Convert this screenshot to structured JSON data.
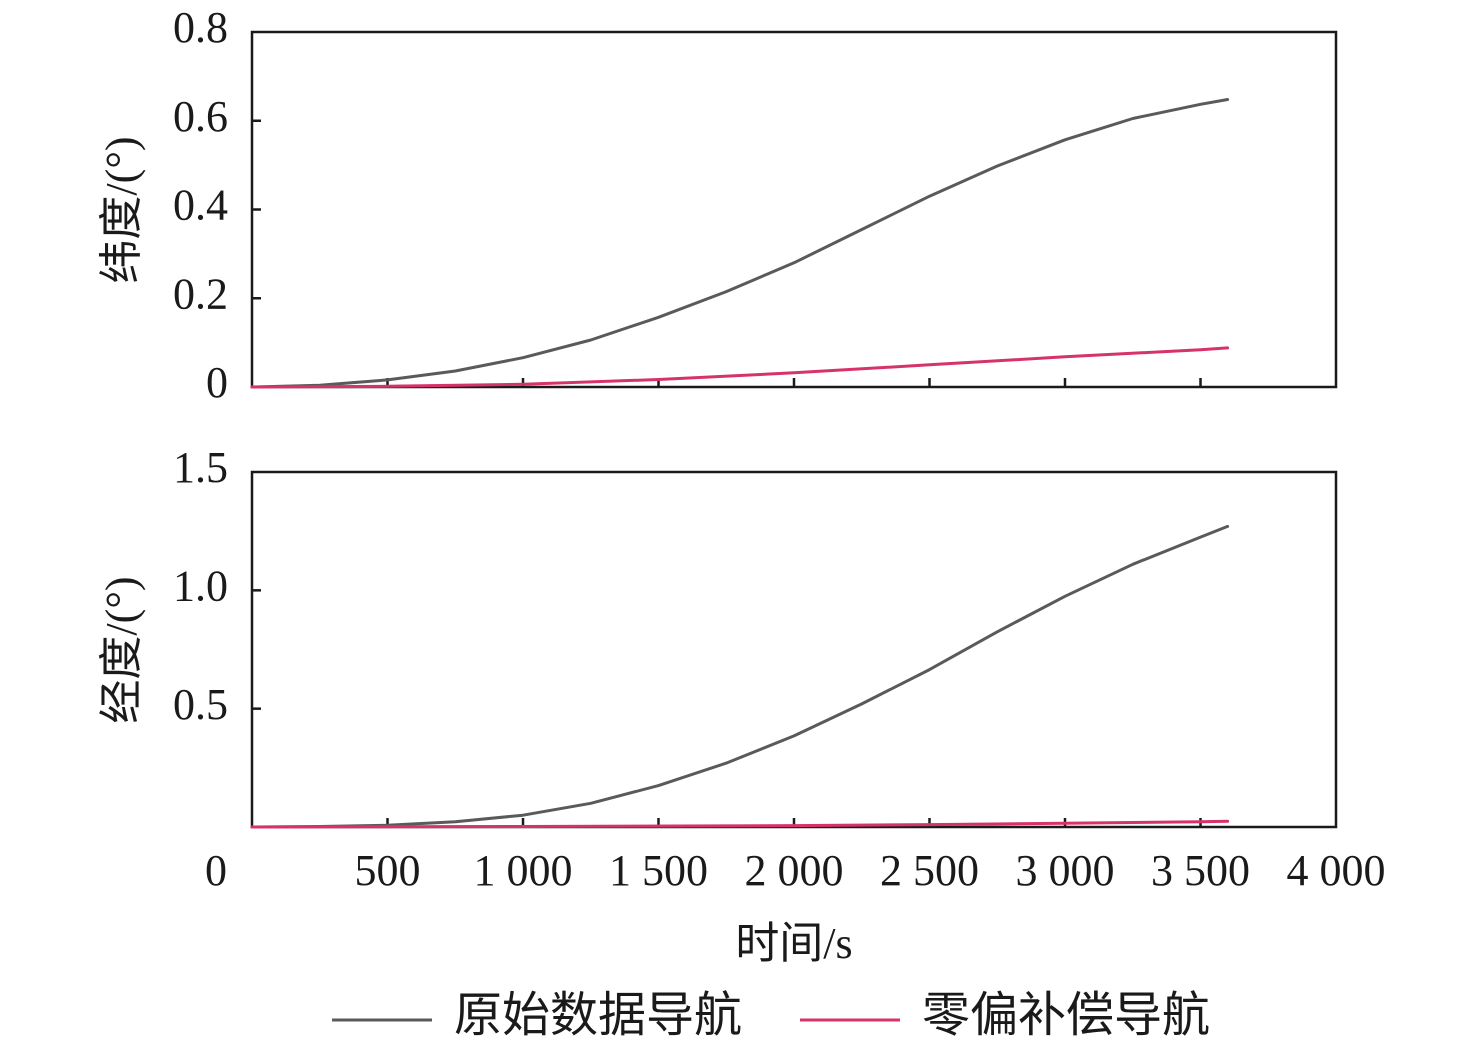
{
  "chart_data": [
    {
      "type": "line",
      "ylabel": "纬度/(°)",
      "xlim": [
        0,
        4000
      ],
      "ylim": [
        0,
        0.8
      ],
      "yticks": [
        "0",
        "0.2",
        "0.4",
        "0.6",
        "0.8"
      ],
      "ytick_values": [
        0,
        0.2,
        0.4,
        0.6,
        0.8
      ],
      "xtick_values": [
        0,
        500,
        1000,
        1500,
        2000,
        2500,
        3000,
        3500,
        4000
      ],
      "grid": false,
      "series": [
        {
          "name": "原始数据导航",
          "color": "#5a5a5a",
          "x": [
            0,
            250,
            500,
            750,
            1000,
            1250,
            1500,
            1750,
            2000,
            2250,
            2500,
            2750,
            3000,
            3250,
            3500,
            3600
          ],
          "y": [
            0,
            0.004,
            0.016,
            0.036,
            0.066,
            0.106,
            0.157,
            0.215,
            0.28,
            0.355,
            0.43,
            0.498,
            0.557,
            0.605,
            0.637,
            0.648
          ]
        },
        {
          "name": "零偏补偿导航",
          "color": "#d6336c",
          "x": [
            0,
            500,
            1000,
            1500,
            2000,
            2500,
            3000,
            3500,
            3600
          ],
          "y": [
            0,
            0.0015,
            0.006,
            0.017,
            0.032,
            0.05,
            0.068,
            0.084,
            0.088
          ]
        }
      ]
    },
    {
      "type": "line",
      "ylabel": "经度/(°)",
      "xlabel": "时间/s",
      "xlim": [
        0,
        4000
      ],
      "ylim": [
        0,
        1.5
      ],
      "yticks": [
        "0.5",
        "1.0",
        "1.5"
      ],
      "ytick_values": [
        0.5,
        1.0,
        1.5
      ],
      "xticks": [
        "0",
        "500",
        "1 000",
        "1 500",
        "2 000",
        "2 500",
        "3 000",
        "3 500",
        "4 000"
      ],
      "xtick_values": [
        0,
        500,
        1000,
        1500,
        2000,
        2500,
        3000,
        3500,
        4000
      ],
      "grid": false,
      "series": [
        {
          "name": "原始数据导航",
          "color": "#5a5a5a",
          "x": [
            0,
            250,
            500,
            750,
            1000,
            1250,
            1500,
            1750,
            2000,
            2250,
            2500,
            2750,
            3000,
            3250,
            3500,
            3600
          ],
          "y": [
            0,
            0.002,
            0.007,
            0.022,
            0.05,
            0.1,
            0.175,
            0.27,
            0.385,
            0.52,
            0.665,
            0.825,
            0.975,
            1.11,
            1.225,
            1.27
          ]
        },
        {
          "name": "零偏补偿导航",
          "color": "#d6336c",
          "x": [
            0,
            1000,
            2000,
            2500,
            3000,
            3500,
            3600
          ],
          "y": [
            0,
            0.002,
            0.006,
            0.01,
            0.016,
            0.022,
            0.024
          ]
        }
      ]
    }
  ],
  "legend": {
    "placement": "bottom",
    "items": [
      {
        "label": "原始数据导航",
        "color": "#5a5a5a"
      },
      {
        "label": "零偏补偿导航",
        "color": "#d6336c"
      }
    ]
  }
}
